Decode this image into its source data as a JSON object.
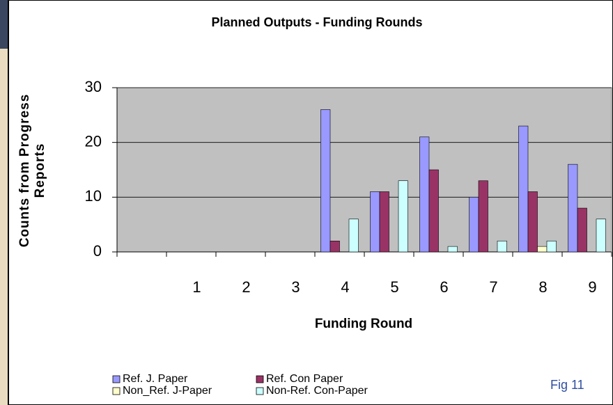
{
  "chart_data": {
    "type": "bar",
    "title": "Planned Outputs - Funding Rounds",
    "xlabel": "Funding Round",
    "ylabel": "Counts from Progress Reports",
    "annotation": "Fig 11",
    "categories": [
      null,
      "1",
      "2",
      "3",
      "4",
      "5",
      "6",
      "7",
      "8",
      "9"
    ],
    "series": [
      {
        "name": "Ref. J. Paper",
        "color": "#9999ff",
        "values": [
          0,
          0,
          0,
          0,
          26,
          11,
          21,
          10,
          23,
          16
        ]
      },
      {
        "name": "Ref. Con Paper",
        "color": "#993366",
        "values": [
          0,
          0,
          0,
          0,
          2,
          11,
          15,
          13,
          11,
          8
        ]
      },
      {
        "name": "Non_Ref. J-Paper",
        "color": "#ffffcc",
        "values": [
          0,
          0,
          0,
          0,
          0,
          0,
          0,
          0,
          1,
          0
        ]
      },
      {
        "name": "Non-Ref. Con-Paper",
        "color": "#ccffff",
        "values": [
          0,
          0,
          0,
          0,
          6,
          13,
          1,
          2,
          2,
          6
        ]
      }
    ],
    "ylim": [
      0,
      30
    ],
    "yticks": [
      0,
      10,
      20,
      30
    ],
    "grid": true,
    "plot_background": "#c0c0c0",
    "legend": "bottom"
  }
}
